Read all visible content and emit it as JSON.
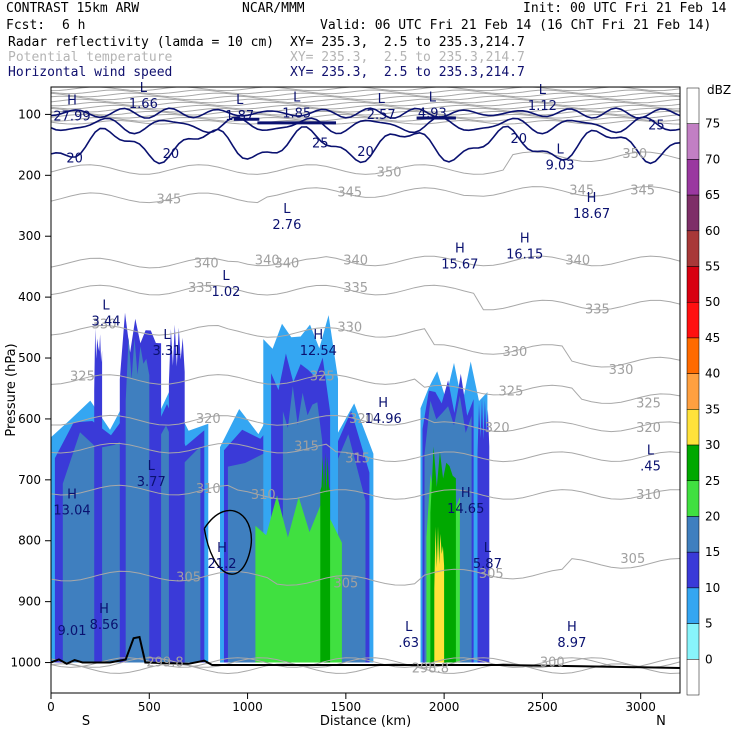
{
  "header": {
    "model": "CONTRAST 15km ARW",
    "org": "NCAR/MMM",
    "init": "Init: 00 UTC Fri 21 Feb 14",
    "fcst_label": "Fcst:",
    "fcst_value": "6 h",
    "valid": "Valid: 06 UTC Fri 21 Feb 14 (16 ChT Fri 21 Feb 14)"
  },
  "fields": [
    {
      "name": "Radar reflectivity (lamda = 10 cm)",
      "xy": "XY= 235.3,  2.5 to 235.3,214.7"
    },
    {
      "name": "Potential temperature",
      "xy": "XY= 235.3,  2.5 to 235.3,214.7"
    },
    {
      "name": "Horizontal wind speed",
      "xy": "XY= 235.3,  2.5 to 235.3,214.7"
    }
  ],
  "colors": {
    "wind": "#0a1170",
    "theta": "#a8a8a8",
    "terrain": "#000000"
  },
  "chart_data": {
    "type": "cross-section",
    "xlabel": "Distance (km)",
    "ylabel": "Pressure (hPa)",
    "xlim": [
      0,
      3200
    ],
    "ylim": [
      1050,
      55
    ],
    "x_ticks": [
      0,
      500,
      1000,
      1500,
      2000,
      2500,
      3000
    ],
    "y_ticks": [
      100,
      200,
      300,
      400,
      500,
      600,
      700,
      800,
      900,
      1000
    ],
    "x_ends": {
      "left": "S",
      "right": "N"
    },
    "colorbar": {
      "title": "dBZ",
      "levels": [
        75,
        70,
        65,
        60,
        55,
        50,
        45,
        40,
        35,
        30,
        25,
        20,
        15,
        10,
        5,
        0
      ],
      "colors": [
        "#ffffff",
        "#c27fc4",
        "#9a38a0",
        "#7e2e68",
        "#a83838",
        "#d80010",
        "#ff1010",
        "#ff6a00",
        "#ffa040",
        "#ffe23b",
        "#00a800",
        "#40e040",
        "#3f7fbf",
        "#3a3ad8",
        "#34a6f2",
        "#88f4fb",
        "#ffffff"
      ]
    },
    "reflectivity_cells": [
      {
        "x0": 0,
        "x1": 800,
        "top": 590,
        "dbz": 5
      },
      {
        "x0": 20,
        "x1": 780,
        "top": 610,
        "dbz": 10
      },
      {
        "x0": 60,
        "x1": 760,
        "top": 640,
        "dbz": 15
      },
      {
        "x0": 220,
        "x1": 260,
        "top": 480,
        "dbz": 10
      },
      {
        "x0": 350,
        "x1": 560,
        "top": 460,
        "dbz": 10
      },
      {
        "x0": 380,
        "x1": 500,
        "top": 500,
        "dbz": 15
      },
      {
        "x0": 600,
        "x1": 680,
        "top": 480,
        "dbz": 10
      },
      {
        "x0": 860,
        "x1": 1640,
        "top": 600,
        "dbz": 5
      },
      {
        "x0": 880,
        "x1": 1620,
        "top": 620,
        "dbz": 10
      },
      {
        "x0": 900,
        "x1": 1600,
        "top": 660,
        "dbz": 15
      },
      {
        "x0": 1080,
        "x1": 1460,
        "top": 460,
        "dbz": 5
      },
      {
        "x0": 1120,
        "x1": 1420,
        "top": 520,
        "dbz": 10
      },
      {
        "x0": 1180,
        "x1": 1380,
        "top": 580,
        "dbz": 15
      },
      {
        "x0": 1040,
        "x1": 1480,
        "top": 760,
        "dbz": 20
      },
      {
        "x0": 1370,
        "x1": 1420,
        "top": 690,
        "dbz": 25
      },
      {
        "x0": 1880,
        "x1": 2220,
        "top": 540,
        "dbz": 5
      },
      {
        "x0": 1890,
        "x1": 2150,
        "top": 560,
        "dbz": 10
      },
      {
        "x0": 1900,
        "x1": 2140,
        "top": 590,
        "dbz": 15
      },
      {
        "x0": 1910,
        "x1": 2080,
        "top": 720,
        "dbz": 20
      },
      {
        "x0": 1930,
        "x1": 2060,
        "top": 680,
        "dbz": 25
      },
      {
        "x0": 1950,
        "x1": 2000,
        "top": 810,
        "dbz": 30
      },
      {
        "x0": 2170,
        "x1": 2230,
        "top": 600,
        "dbz": 10
      }
    ],
    "theta_labels": [
      {
        "x": 2970,
        "p": 165,
        "text": "350"
      },
      {
        "x": 1720,
        "p": 195,
        "text": "350"
      },
      {
        "x": 3010,
        "p": 225,
        "text": "345"
      },
      {
        "x": 2700,
        "p": 225,
        "text": "345"
      },
      {
        "x": 1520,
        "p": 228,
        "text": "345"
      },
      {
        "x": 600,
        "p": 240,
        "text": "345"
      },
      {
        "x": 1200,
        "p": 345,
        "text": "340"
      },
      {
        "x": 1550,
        "p": 340,
        "text": "340"
      },
      {
        "x": 2680,
        "p": 340,
        "text": "340"
      },
      {
        "x": 1100,
        "p": 340,
        "text": "340"
      },
      {
        "x": 790,
        "p": 345,
        "text": "340"
      },
      {
        "x": 760,
        "p": 385,
        "text": "335"
      },
      {
        "x": 1550,
        "p": 385,
        "text": "335"
      },
      {
        "x": 2780,
        "p": 420,
        "text": "335"
      },
      {
        "x": 270,
        "p": 445,
        "text": "330"
      },
      {
        "x": 1520,
        "p": 450,
        "text": "330"
      },
      {
        "x": 2360,
        "p": 490,
        "text": "330"
      },
      {
        "x": 2900,
        "p": 520,
        "text": "330"
      },
      {
        "x": 160,
        "p": 530,
        "text": "325"
      },
      {
        "x": 1380,
        "p": 530,
        "text": "325"
      },
      {
        "x": 2340,
        "p": 555,
        "text": "325"
      },
      {
        "x": 3040,
        "p": 575,
        "text": "325"
      },
      {
        "x": 800,
        "p": 600,
        "text": "320"
      },
      {
        "x": 1580,
        "p": 600,
        "text": "320"
      },
      {
        "x": 2270,
        "p": 615,
        "text": "320"
      },
      {
        "x": 3040,
        "p": 615,
        "text": "320"
      },
      {
        "x": 1300,
        "p": 645,
        "text": "315"
      },
      {
        "x": 1560,
        "p": 665,
        "text": "315"
      },
      {
        "x": 800,
        "p": 715,
        "text": "310"
      },
      {
        "x": 1080,
        "p": 725,
        "text": "310"
      },
      {
        "x": 3040,
        "p": 725,
        "text": "310"
      },
      {
        "x": 700,
        "p": 860,
        "text": "305"
      },
      {
        "x": 1500,
        "p": 870,
        "text": "305"
      },
      {
        "x": 2240,
        "p": 855,
        "text": "305"
      },
      {
        "x": 2960,
        "p": 830,
        "text": "305"
      },
      {
        "x": 2550,
        "p": 1000,
        "text": "300"
      },
      {
        "x": 580,
        "p": 1000,
        "text": "299.8"
      },
      {
        "x": 1930,
        "p": 1010,
        "text": "298.8"
      }
    ],
    "wind_labels": [
      {
        "x": 120,
        "p": 172,
        "text": "20"
      },
      {
        "x": 610,
        "p": 165,
        "text": "20"
      },
      {
        "x": 1370,
        "p": 148,
        "text": "25"
      },
      {
        "x": 1600,
        "p": 162,
        "text": "20"
      },
      {
        "x": 2380,
        "p": 140,
        "text": "20"
      },
      {
        "x": 3080,
        "p": 118,
        "text": "25"
      }
    ],
    "extrema": [
      {
        "x": 80,
        "p": 95,
        "kind": "H",
        "value": "27.99"
      },
      {
        "x": 470,
        "p": 75,
        "kind": "L",
        "value": "1.66"
      },
      {
        "x": 960,
        "p": 94,
        "kind": "L",
        "value": "1.87"
      },
      {
        "x": 1250,
        "p": 90,
        "kind": "L",
        "value": "1.85"
      },
      {
        "x": 1680,
        "p": 93,
        "kind": "L",
        "value": "2.57"
      },
      {
        "x": 1940,
        "p": 90,
        "kind": "L",
        "value": "4.93"
      },
      {
        "x": 2500,
        "p": 78,
        "kind": "L",
        "value": "1.12"
      },
      {
        "x": 2590,
        "p": 176,
        "kind": "L",
        "value": "9.03"
      },
      {
        "x": 2750,
        "p": 255,
        "kind": "H",
        "value": "18.67"
      },
      {
        "x": 1200,
        "p": 273,
        "kind": "L",
        "value": "2.76"
      },
      {
        "x": 2410,
        "p": 322,
        "kind": "H",
        "value": "16.15"
      },
      {
        "x": 2080,
        "p": 338,
        "kind": "H",
        "value": "15.67"
      },
      {
        "x": 890,
        "p": 383,
        "kind": "L",
        "value": "1.02"
      },
      {
        "x": 280,
        "p": 432,
        "kind": "L",
        "value": "3.44"
      },
      {
        "x": 590,
        "p": 480,
        "kind": "L",
        "value": "3.31"
      },
      {
        "x": 1360,
        "p": 480,
        "kind": "H",
        "value": "12.54"
      },
      {
        "x": 1690,
        "p": 592,
        "kind": "H",
        "value": "14.96"
      },
      {
        "x": 3050,
        "p": 670,
        "kind": "L",
        "value": ".45"
      },
      {
        "x": 510,
        "p": 695,
        "kind": "L",
        "value": "3.77"
      },
      {
        "x": 10,
        "p": 742,
        "kind": "H",
        "value": "13.04"
      },
      {
        "x": 2110,
        "p": 740,
        "kind": "H",
        "value": "14.65"
      },
      {
        "x": 870,
        "p": 830,
        "kind": "H",
        "value": "21.2"
      },
      {
        "x": 2220,
        "p": 830,
        "kind": "L",
        "value": "5.87"
      },
      {
        "x": 10,
        "p": 940,
        "kind": "",
        "value": "9.01"
      },
      {
        "x": 270,
        "p": 930,
        "kind": "H",
        "value": "8.56"
      },
      {
        "x": 1820,
        "p": 960,
        "kind": "L",
        "value": ".63"
      },
      {
        "x": 2650,
        "p": 960,
        "kind": "H",
        "value": "8.97"
      }
    ]
  }
}
